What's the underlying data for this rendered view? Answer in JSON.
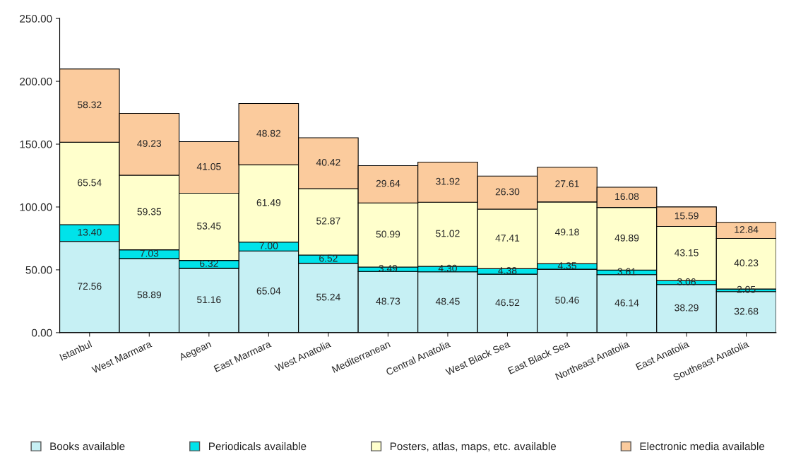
{
  "chart_data": {
    "type": "bar",
    "stacked": true,
    "categories": [
      "Istanbul",
      "West Marmara",
      "Aegean",
      "East Marmara",
      "West Anatolia",
      "Mediterranean",
      "Central Anatolia",
      "West Black Sea",
      "East Black Sea",
      "Northeast Anatolia",
      "East Anatolia",
      "Southeast Anatolia"
    ],
    "series": [
      {
        "name": "Books available",
        "color": "#c6f0f4",
        "values": [
          72.56,
          58.89,
          51.16,
          65.04,
          55.24,
          48.73,
          48.45,
          46.52,
          50.46,
          46.14,
          38.29,
          32.68
        ],
        "value_labels": [
          "72.56",
          "58.89",
          "51.16",
          "65.04",
          "55.24",
          "48.73",
          "48.45",
          "46.52",
          "50.46",
          "46.14",
          "38.29",
          "32.68"
        ]
      },
      {
        "name": "Periodicals available",
        "color": "#00e3ea",
        "values": [
          13.4,
          7.03,
          6.32,
          7.0,
          6.52,
          3.49,
          4.3,
          4.38,
          4.35,
          3.61,
          3.06,
          2.05
        ],
        "value_labels": [
          "13.40",
          "7.03",
          "6.32",
          "7.00",
          "6.52",
          "3.49",
          "4.30",
          "4.38",
          "4.35",
          "3.61",
          "3.06",
          "2.05"
        ]
      },
      {
        "name": "Posters, atlas, maps, etc. available",
        "color": "#ffffcc",
        "values": [
          65.54,
          59.35,
          53.45,
          61.49,
          52.87,
          50.99,
          51.02,
          47.41,
          49.18,
          49.89,
          43.15,
          40.23
        ],
        "value_labels": [
          "65.54",
          "59.35",
          "53.45",
          "61.49",
          "52.87",
          "50.99",
          "51.02",
          "47.41",
          "49.18",
          "49.89",
          "43.15",
          "40.23"
        ]
      },
      {
        "name": "Electronic media available",
        "color": "#fbcb9d",
        "values": [
          58.32,
          49.23,
          41.05,
          48.82,
          40.42,
          29.64,
          31.92,
          26.3,
          27.61,
          16.08,
          15.59,
          12.84
        ],
        "value_labels": [
          "58.32",
          "49.23",
          "41.05",
          "48.82",
          "40.42",
          "29.64",
          "31.92",
          "26.30",
          "27.61",
          "16.08",
          "15.59",
          "12.84"
        ]
      }
    ],
    "ylim": [
      0,
      250
    ],
    "yticks": [
      {
        "value": 0,
        "label": "0.00"
      },
      {
        "value": 50,
        "label": "50.00"
      },
      {
        "value": 100,
        "label": "100.00"
      },
      {
        "value": 150,
        "label": "150.00"
      },
      {
        "value": 200,
        "label": "200.00"
      },
      {
        "value": 250,
        "label": "250.00"
      }
    ],
    "grid": false,
    "legend": "bottom"
  }
}
